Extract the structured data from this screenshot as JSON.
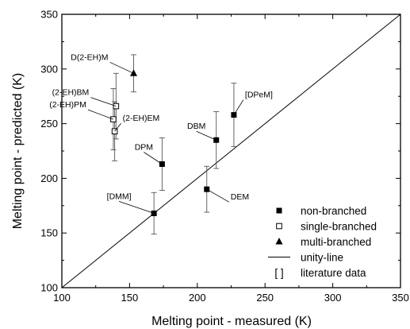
{
  "chart_data": {
    "type": "scatter",
    "title": "",
    "xlabel": "Melting point - measured (K)",
    "ylabel": "Melting point - predicted (K)",
    "xlim": [
      100,
      350
    ],
    "ylim": [
      100,
      350
    ],
    "xticks": [
      100,
      150,
      200,
      250,
      300,
      350
    ],
    "yticks": [
      100,
      150,
      200,
      250,
      300,
      350
    ],
    "grid": false,
    "legend_position": "bottom-right",
    "legend": [
      {
        "marker": "square-filled",
        "label": "non-branched"
      },
      {
        "marker": "square-open",
        "label": "single-branched"
      },
      {
        "marker": "triangle-filled",
        "label": "multi-branched"
      },
      {
        "marker": "line",
        "label": "unity-line"
      },
      {
        "marker": "brackets",
        "label": "literature data"
      }
    ],
    "legend_brackets_symbol": "[ ]",
    "unity_line": {
      "x": [
        100,
        350
      ],
      "y": [
        100,
        350
      ]
    },
    "points": [
      {
        "label": "[DMM]",
        "x": 168,
        "y": 168,
        "err": 19,
        "marker": "square-filled"
      },
      {
        "label": "DPM",
        "x": 174,
        "y": 213,
        "err": 24,
        "marker": "square-filled"
      },
      {
        "label": "DEM",
        "x": 207,
        "y": 190,
        "err": 21,
        "marker": "square-filled"
      },
      {
        "label": "DBM",
        "x": 214,
        "y": 235,
        "err": 26,
        "marker": "square-filled"
      },
      {
        "label": "[DPeM]",
        "x": 227,
        "y": 258,
        "err": 29,
        "marker": "square-filled"
      },
      {
        "label": "(2-EH)BM",
        "x": 140,
        "y": 266,
        "err": 30,
        "marker": "square-open"
      },
      {
        "label": "(2-EH)PM",
        "x": 138,
        "y": 254,
        "err": 28,
        "marker": "square-open"
      },
      {
        "label": "(2-EH)EM",
        "x": 139,
        "y": 243,
        "err": 27,
        "marker": "square-open"
      },
      {
        "label": "D(2-EH)M",
        "x": 153,
        "y": 296,
        "err": 17,
        "marker": "triangle-filled"
      }
    ]
  }
}
